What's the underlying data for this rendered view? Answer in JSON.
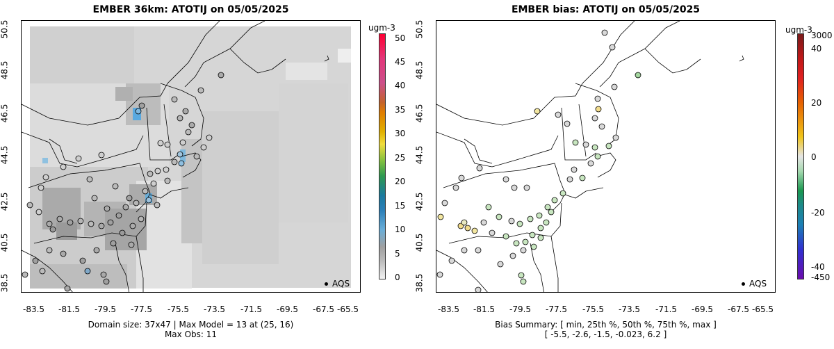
{
  "left_panel": {
    "title": "EMBER 36km: ATOTIJ on 05/05/2025",
    "y_ticks": [
      "50.5",
      "48.5",
      "46.5",
      "44.5",
      "42.5",
      "40.5",
      "38.5"
    ],
    "x_ticks": [
      "-83.5",
      "-81.5",
      "-79.5",
      "-77.5",
      "-75.5",
      "-73.5",
      "-71.5",
      "-69.5",
      "-67.5",
      "-65.5"
    ],
    "footer_line1": "Domain size: 37x47 | Max Model = 13 at (25, 16)",
    "footer_line2": "Max Obs: 11",
    "legend_label": "AQS",
    "colorbar": {
      "unit": "ugm-3",
      "labels": [
        "50",
        "45",
        "40",
        "35",
        "30",
        "25",
        "20",
        "15",
        "10",
        "5",
        "0"
      ],
      "colors": [
        "#808080",
        "#ababab",
        "#d3d3d3",
        "#6baed6",
        "#2b7fb8",
        "#2e8b57",
        "#7fbf3f",
        "#f0e442",
        "#e69f00",
        "#e06000",
        "#d7191c"
      ]
    }
  },
  "right_panel": {
    "title": "EMBER bias: ATOTIJ on 05/05/2025",
    "y_ticks": [
      "50.5",
      "48.5",
      "46.5",
      "44.5",
      "42.5",
      "40.5",
      "38.5"
    ],
    "x_ticks": [
      "-83.5",
      "-81.5",
      "-79.5",
      "-77.5",
      "-75.5",
      "-73.5",
      "-71.5",
      "-69.5",
      "-67.5",
      "-65.5"
    ],
    "footer_line1": "Bias Summary: [ min, 25th %, 50th %, 75th %, max ]",
    "footer_line2": "[ -5.5,   -2.6,   -1.5,   -0.023,   6.2 ]",
    "legend_label": "AQS",
    "colorbar": {
      "unit": "ugm-3",
      "labels": [
        "3000",
        "40",
        "20",
        "0",
        "-20",
        "-40",
        "-450"
      ],
      "colors": [
        "#8b1a1a",
        "#e31a1c",
        "#e66101",
        "#f0c419",
        "#e5e5e5",
        "#66c2a4",
        "#1a9850",
        "#1c7fb5",
        "#3030d0",
        "#6a0dad"
      ]
    }
  }
}
